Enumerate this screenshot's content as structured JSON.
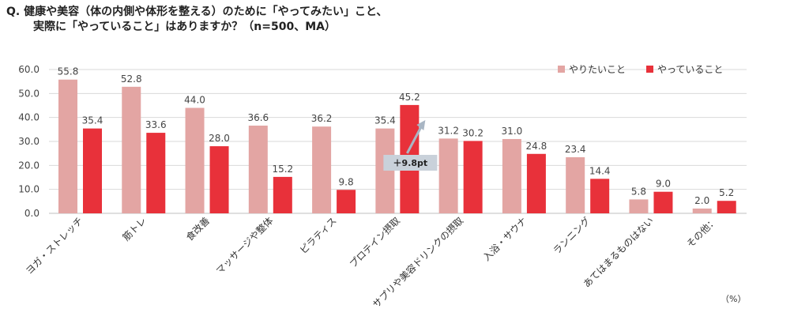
{
  "question": {
    "line1": "Q. 健康や美容（体の内側や体形を整える）のために「やってみたい」こと、",
    "line2": "実際に「やっていること」はありますか？（n=500、MA）"
  },
  "unit_label": "（%）",
  "annotation": "＋9.8pt",
  "colors": {
    "want": "#e3a5a3",
    "doing": "#e8313a",
    "annotation_box": "#c9d1da",
    "arrow": "#a9b6c4",
    "grid": "#d9d9d9"
  },
  "chart_data": {
    "type": "bar",
    "categories": [
      "ヨガ・ストレッチ",
      "筋トレ",
      "食改善",
      "マッサージや整体",
      "ピラティス",
      "プロテイン摂取",
      "サプリや美容ドリンクの摂取",
      "入浴・サウナ",
      "ランニング",
      "あてはまるものはない",
      "その他："
    ],
    "series": [
      {
        "name": "やりたいこと",
        "values": [
          55.8,
          52.8,
          44.0,
          36.6,
          36.2,
          35.4,
          31.2,
          31.0,
          23.4,
          5.8,
          2.0
        ]
      },
      {
        "name": "やっていること",
        "values": [
          35.4,
          33.6,
          28.0,
          15.2,
          9.8,
          45.2,
          30.2,
          24.8,
          14.4,
          9.0,
          5.2
        ]
      }
    ],
    "ylim": [
      0,
      60
    ],
    "yticks": [
      "0.0",
      "10.0",
      "20.0",
      "30.0",
      "40.0",
      "50.0",
      "60.0"
    ],
    "grid": true,
    "legend_position": "top-right"
  }
}
